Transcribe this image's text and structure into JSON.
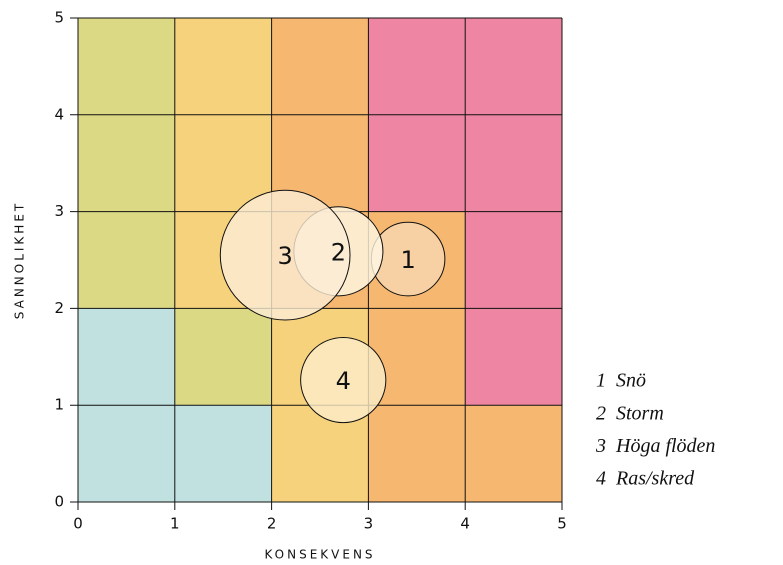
{
  "chart_data": {
    "type": "bubble",
    "xlabel": "KONSEKVENS",
    "ylabel": "SANNOLIKHET",
    "xlim": [
      0,
      5
    ],
    "ylim": [
      0,
      5
    ],
    "xticks": [
      0,
      1,
      2,
      3,
      4,
      5
    ],
    "yticks": [
      0,
      1,
      2,
      3,
      4,
      5
    ],
    "grid": true,
    "cells": [
      [
        "#c1e1e0",
        "#c1e1e0",
        "#f7d27d",
        "#f6b871",
        "#f6b871"
      ],
      [
        "#c1e1e0",
        "#dcd985",
        "#f7d27d",
        "#f6b871",
        "#ee86a3"
      ],
      [
        "#dcd985",
        "#f7d27d",
        "#f6b871",
        "#f6b871",
        "#ee86a3"
      ],
      [
        "#dcd985",
        "#f7d27d",
        "#f6b871",
        "#ee86a3",
        "#ee86a3"
      ],
      [
        "#dcd985",
        "#f7d27d",
        "#f6b871",
        "#ee86a3",
        "#ee86a3"
      ]
    ],
    "series": [
      {
        "label": "1",
        "name": "Snö",
        "x": 3.41,
        "y": 2.51,
        "size": 0.38,
        "color": "#f7d6b0"
      },
      {
        "label": "2",
        "name": "Storm",
        "x": 2.69,
        "y": 2.59,
        "size": 0.46,
        "color": "#fff7e6"
      },
      {
        "label": "3",
        "name": "Höga flöden",
        "x": 2.14,
        "y": 2.55,
        "size": 0.67,
        "color": "#fbecd4"
      },
      {
        "label": "4",
        "name": "Ras/skred",
        "x": 2.74,
        "y": 1.26,
        "size": 0.44,
        "color": "#fbecc9"
      }
    ]
  }
}
